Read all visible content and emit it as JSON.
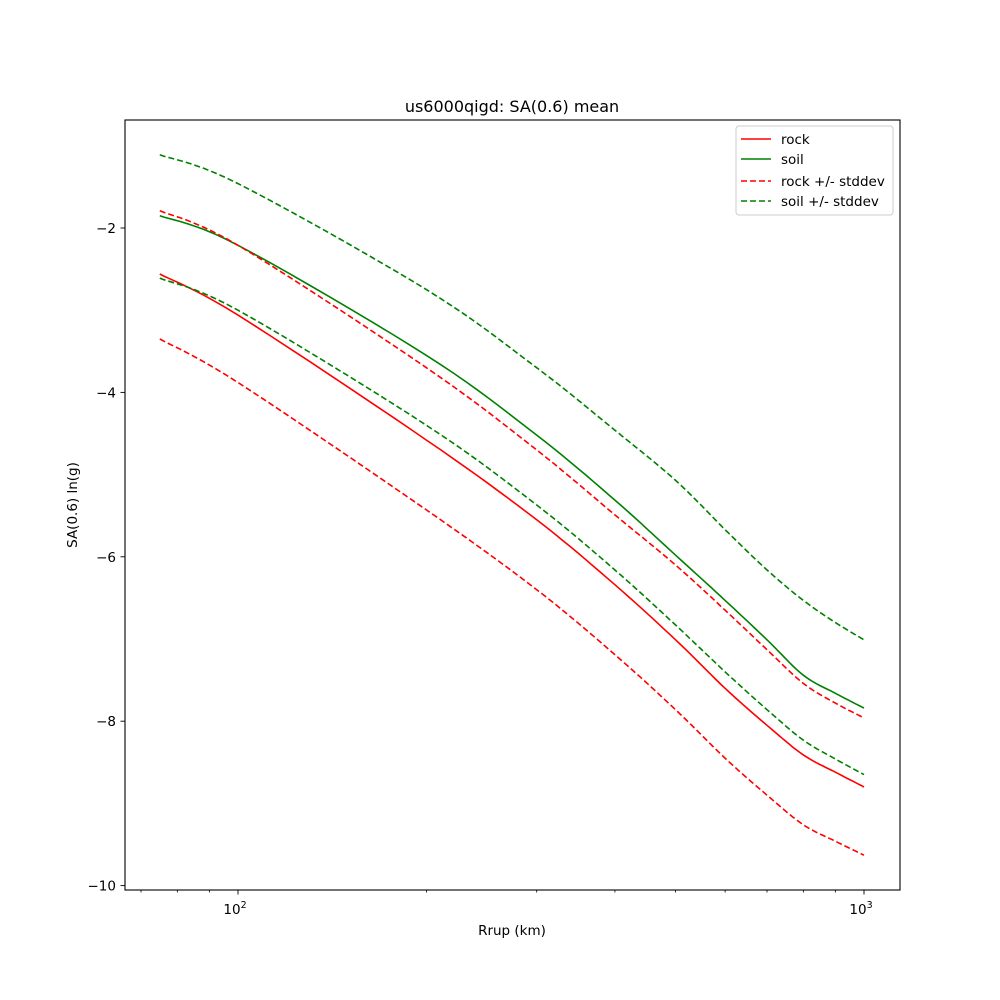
{
  "chart_data": {
    "type": "line",
    "title": "us6000qigd: SA(0.6) mean",
    "xlabel": "Rrup (km)",
    "ylabel": "SA(0.6) ln(g)",
    "xscale": "log",
    "xlim": [
      68,
      1150
    ],
    "ylim": [
      -10.05,
      -0.55
    ],
    "x_ticks": [
      {
        "value": 100,
        "label": "10",
        "exp": "2"
      },
      {
        "value": 1000,
        "label": "10",
        "exp": "3"
      }
    ],
    "y_ticks": [
      {
        "value": -2,
        "label": "−2"
      },
      {
        "value": -4,
        "label": "−4"
      },
      {
        "value": -6,
        "label": "−6"
      },
      {
        "value": -8,
        "label": "−8"
      },
      {
        "value": -10,
        "label": "−10"
      }
    ],
    "grid": false,
    "legend_position": "upper right",
    "x": [
      75,
      100,
      200,
      300,
      400,
      500,
      600,
      700,
      800,
      900,
      1000
    ],
    "series": [
      {
        "name": "rock",
        "color": "#ff0000",
        "style": "solid",
        "values": [
          -2.56,
          -3.06,
          -4.58,
          -5.55,
          -6.34,
          -7.01,
          -7.6,
          -8.05,
          -8.41,
          -8.62,
          -8.8
        ]
      },
      {
        "name": "soil",
        "color": "#008000",
        "style": "solid",
        "values": [
          -1.85,
          -2.21,
          -3.55,
          -4.52,
          -5.31,
          -5.98,
          -6.53,
          -7.01,
          -7.44,
          -7.66,
          -7.84
        ]
      },
      {
        "name": "rock +/- stddev",
        "color": "#ff0000",
        "style": "dashed",
        "values": [
          -1.79,
          -2.21,
          -3.7,
          -4.7,
          -5.49,
          -6.1,
          -6.65,
          -7.13,
          -7.54,
          -7.78,
          -7.96
        ]
      },
      {
        "name": "rock +/- stddev",
        "color": "#ff0000",
        "style": "dashed",
        "legend": false,
        "values": [
          -3.35,
          -3.88,
          -5.43,
          -6.4,
          -7.19,
          -7.86,
          -8.45,
          -8.9,
          -9.26,
          -9.46,
          -9.63
        ]
      },
      {
        "name": "soil +/- stddev",
        "color": "#008000",
        "style": "dashed",
        "values": [
          -1.11,
          -1.46,
          -2.75,
          -3.7,
          -4.46,
          -5.07,
          -5.67,
          -6.16,
          -6.53,
          -6.8,
          -7.01
        ]
      },
      {
        "name": "soil +/- stddev",
        "color": "#008000",
        "style": "dashed",
        "legend": false,
        "values": [
          -2.61,
          -3.0,
          -4.4,
          -5.37,
          -6.16,
          -6.83,
          -7.4,
          -7.86,
          -8.23,
          -8.46,
          -8.65
        ]
      }
    ]
  },
  "legend": {
    "items": [
      {
        "label": "rock",
        "color": "#ff0000",
        "style": "solid"
      },
      {
        "label": "soil",
        "color": "#008000",
        "style": "solid"
      },
      {
        "label": "rock +/- stddev",
        "color": "#ff0000",
        "style": "dashed"
      },
      {
        "label": "soil +/- stddev",
        "color": "#008000",
        "style": "dashed"
      }
    ]
  }
}
